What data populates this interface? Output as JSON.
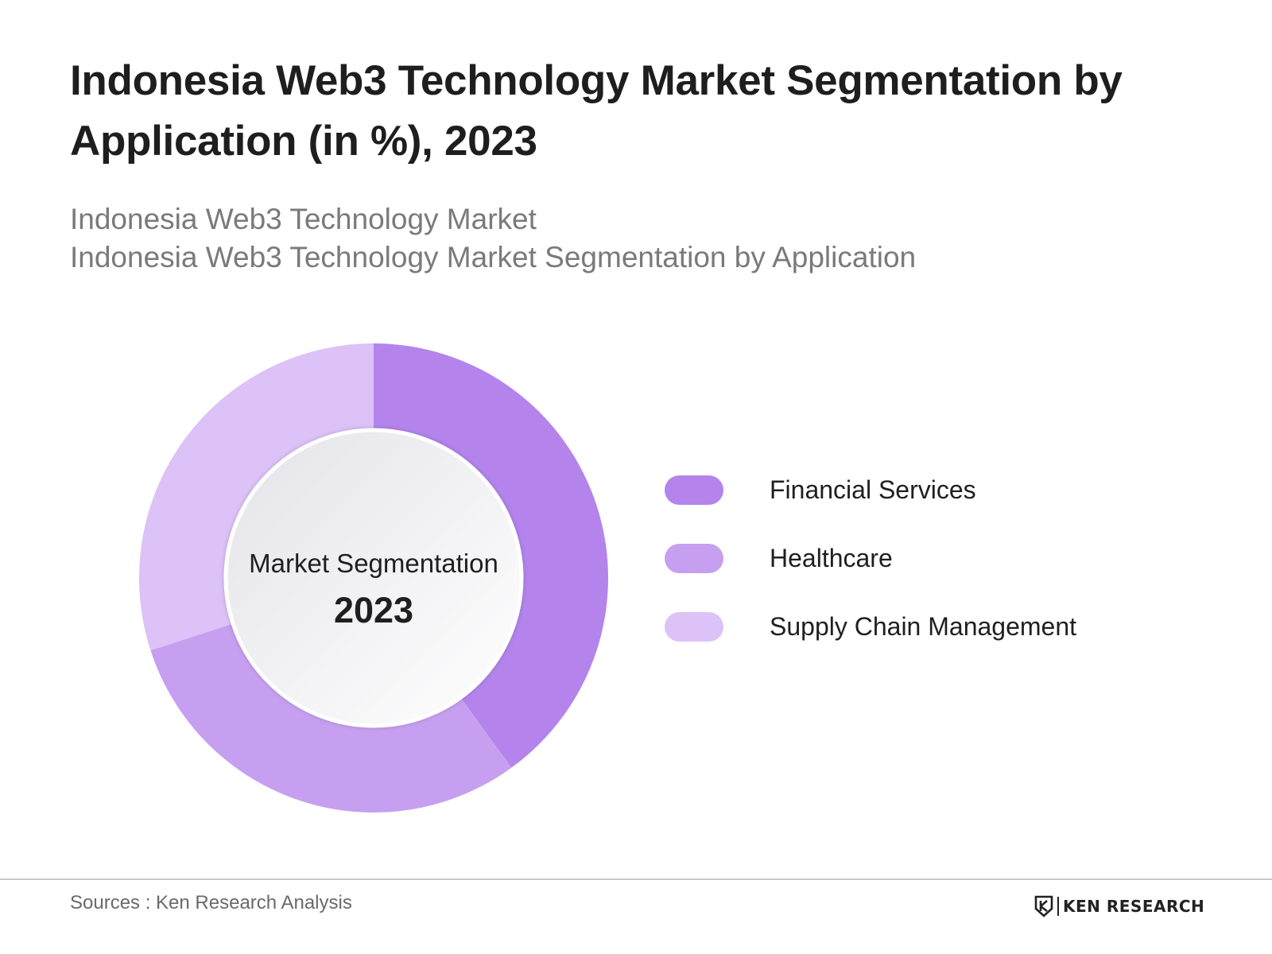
{
  "title": "Indonesia Web3 Technology Market Segmentation by Application (in %), 2023",
  "subtitle": {
    "line1": "Indonesia Web3 Technology Market",
    "line2": "Indonesia Web3 Technology Market Segmentation by Application"
  },
  "chart_data": {
    "type": "pie",
    "style": "donut",
    "center_label": "Market Segmentation",
    "center_value": "2023",
    "categories": [
      "Financial Services",
      "Healthcare",
      "Supply Chain Management"
    ],
    "values": [
      40,
      30,
      30
    ],
    "colors": [
      "#b484ec",
      "#c79ff0",
      "#dcc2f7"
    ],
    "legend_position": "right"
  },
  "legend": {
    "items": [
      {
        "label": "Financial Services",
        "color": "#b484ec"
      },
      {
        "label": "Healthcare",
        "color": "#c79ff0"
      },
      {
        "label": "Supply Chain Management",
        "color": "#dcc2f7"
      }
    ]
  },
  "footer": {
    "source": "Sources : Ken Research Analysis",
    "logo_text": "KEN RESEARCH"
  }
}
